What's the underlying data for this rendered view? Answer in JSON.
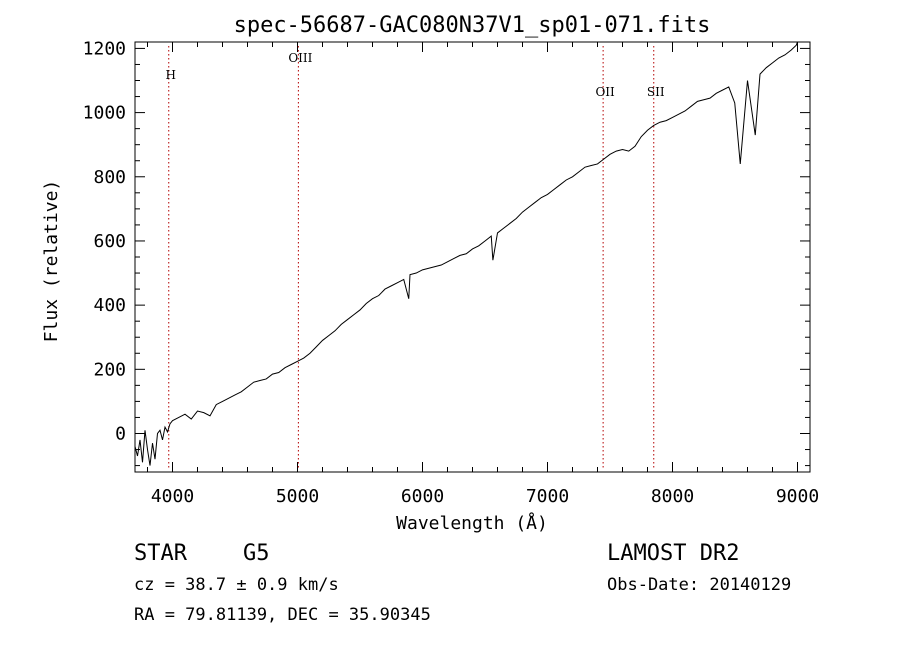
{
  "chart_data": {
    "type": "line",
    "title": "spec-56687-GAC080N37V1_sp01-071.fits",
    "xlabel": "Wavelength (Å)",
    "ylabel": "Flux (relative)",
    "xlim": [
      3700,
      9100
    ],
    "ylim": [
      -120,
      1220
    ],
    "xticks": [
      4000,
      5000,
      6000,
      7000,
      8000,
      9000
    ],
    "yticks": [
      0,
      200,
      400,
      600,
      800,
      1000,
      1200
    ],
    "grid": false,
    "line_markers": [
      {
        "label": "H",
        "x": 3970
      },
      {
        "label": "OIII",
        "x": 5007
      },
      {
        "label": "OII",
        "x": 7445
      },
      {
        "label": "SII",
        "x": 7850
      }
    ],
    "series": [
      {
        "color": "#000000",
        "x": [
          3700,
          3720,
          3740,
          3760,
          3780,
          3800,
          3820,
          3840,
          3860,
          3880,
          3900,
          3920,
          3940,
          3960,
          3980,
          4000,
          4050,
          4100,
          4150,
          4200,
          4250,
          4300,
          4350,
          4400,
          4450,
          4500,
          4550,
          4600,
          4650,
          4700,
          4750,
          4800,
          4850,
          4900,
          4950,
          5000,
          5050,
          5100,
          5150,
          5200,
          5250,
          5300,
          5350,
          5400,
          5450,
          5500,
          5550,
          5600,
          5650,
          5700,
          5750,
          5800,
          5850,
          5890,
          5900,
          5950,
          6000,
          6050,
          6100,
          6150,
          6200,
          6250,
          6300,
          6350,
          6400,
          6450,
          6500,
          6550,
          6563,
          6600,
          6650,
          6700,
          6750,
          6800,
          6850,
          6900,
          6950,
          7000,
          7050,
          7100,
          7150,
          7200,
          7250,
          7300,
          7350,
          7400,
          7450,
          7500,
          7550,
          7600,
          7650,
          7700,
          7750,
          7800,
          7850,
          7900,
          7950,
          8000,
          8050,
          8100,
          8150,
          8200,
          8250,
          8300,
          8350,
          8400,
          8450,
          8498,
          8542,
          8600,
          8662,
          8700,
          8750,
          8800,
          8850,
          8900,
          8950,
          8990,
          9000
        ],
        "y": [
          -40,
          -70,
          -20,
          -90,
          10,
          -50,
          -100,
          -30,
          -80,
          0,
          10,
          -20,
          20,
          5,
          30,
          40,
          50,
          60,
          45,
          70,
          65,
          55,
          90,
          100,
          110,
          120,
          130,
          145,
          160,
          165,
          170,
          185,
          190,
          205,
          215,
          225,
          235,
          250,
          270,
          290,
          305,
          320,
          340,
          355,
          370,
          385,
          405,
          420,
          430,
          450,
          460,
          470,
          480,
          420,
          495,
          500,
          510,
          515,
          520,
          525,
          535,
          545,
          555,
          560,
          575,
          585,
          600,
          615,
          540,
          625,
          640,
          655,
          670,
          690,
          705,
          720,
          735,
          745,
          760,
          775,
          790,
          800,
          815,
          830,
          835,
          840,
          855,
          870,
          880,
          885,
          880,
          895,
          925,
          945,
          960,
          970,
          975,
          985,
          995,
          1005,
          1020,
          1035,
          1040,
          1045,
          1060,
          1070,
          1080,
          1030,
          840,
          1100,
          930,
          1120,
          1140,
          1155,
          1170,
          1180,
          1195,
          1210,
          1220
        ]
      }
    ]
  },
  "footer": {
    "object_type": "STAR",
    "spectral_class": "G5",
    "redshift": "cz = 38.7 ± 0.9 km/s",
    "coordinates": "RA =  79.81139, DEC =  35.90345",
    "survey": "LAMOST DR2",
    "obs_date": "Obs-Date: 20140129"
  },
  "colors": {
    "spectrum": "#000000",
    "marker": "#b40000",
    "frame": "#000000"
  }
}
